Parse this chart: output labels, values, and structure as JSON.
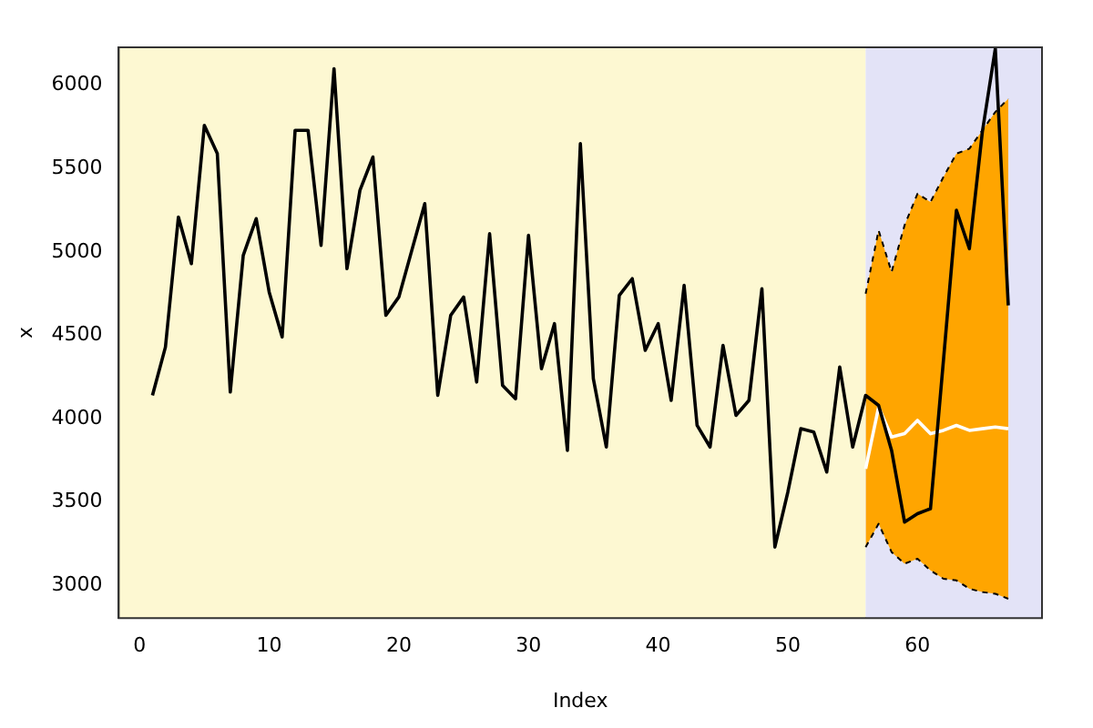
{
  "chart_data": {
    "type": "line",
    "xlabel": "Index",
    "ylabel": "x",
    "xlim": [
      -1.6,
      69.6
    ],
    "xticks": [
      0,
      10,
      20,
      30,
      40,
      50,
      60
    ],
    "ylim": [
      2804,
      6228
    ],
    "yticks": [
      3000,
      3500,
      4000,
      4500,
      5000,
      5500,
      6000
    ],
    "grid": false,
    "legend": false,
    "marker": "none",
    "bands": [
      {
        "axis": "x",
        "from": -1.6,
        "to": 56,
        "color": "#fdf8d2"
      },
      {
        "axis": "x",
        "from": 56,
        "to": 69.6,
        "color": "#e3e3f7"
      }
    ],
    "series": [
      {
        "color": "#000000",
        "x": [
          1,
          2,
          3,
          4,
          5,
          6,
          7,
          8,
          9,
          10,
          11,
          12,
          13,
          14,
          15,
          16,
          17,
          18,
          19,
          20,
          21,
          22,
          23,
          24,
          25,
          26,
          27,
          28,
          29,
          30,
          31,
          32,
          33,
          34,
          35,
          36,
          37,
          38,
          39,
          40,
          41,
          42,
          43,
          44,
          45,
          46,
          47,
          48,
          49,
          50,
          51,
          52,
          53,
          54,
          55,
          56,
          57,
          58,
          59,
          60,
          61,
          62,
          63,
          64,
          65,
          66,
          67
        ],
        "values": [
          4140,
          4430,
          5210,
          4930,
          5760,
          5590,
          4160,
          4980,
          5200,
          4760,
          4490,
          5730,
          5730,
          5040,
          6100,
          4900,
          5370,
          5570,
          4620,
          4730,
          5010,
          5290,
          4140,
          4620,
          4730,
          4220,
          5110,
          4200,
          4120,
          5100,
          4300,
          4570,
          3810,
          5650,
          4240,
          3830,
          4740,
          4840,
          4410,
          4570,
          4110,
          4800,
          3960,
          3830,
          4440,
          4020,
          4110,
          4780,
          3230,
          3560,
          3940,
          3920,
          3680,
          4310,
          3830,
          4140,
          4080,
          3810,
          3380,
          3430,
          3460,
          4350,
          5250,
          5020,
          5720,
          6220,
          4680
        ]
      },
      {
        "color": "#000000",
        "line_style": "dashed",
        "x": [
          56,
          57,
          58,
          59,
          60,
          61,
          62,
          63,
          64,
          65,
          66,
          67
        ],
        "values": [
          4750,
          5130,
          4880,
          5160,
          5350,
          5300,
          5450,
          5590,
          5620,
          5730,
          5840,
          5920
        ]
      },
      {
        "color": "#000000",
        "line_style": "dashed",
        "x": [
          56,
          57,
          58,
          59,
          60,
          61,
          62,
          63,
          64,
          65,
          66,
          67
        ],
        "values": [
          3230,
          3370,
          3200,
          3130,
          3160,
          3090,
          3040,
          3030,
          2980,
          2960,
          2950,
          2920
        ]
      },
      {
        "color": "#ffffff",
        "x": [
          56,
          57,
          58,
          59,
          60,
          61,
          62,
          63,
          64,
          65,
          66,
          67
        ],
        "values": [
          3700,
          4070,
          3890,
          3910,
          3990,
          3910,
          3930,
          3960,
          3930,
          3940,
          3950,
          3940
        ],
        "lower": [
          3230,
          3370,
          3200,
          3130,
          3160,
          3090,
          3040,
          3030,
          2980,
          2960,
          2950,
          2920
        ],
        "upper": [
          4750,
          5130,
          4880,
          5160,
          5350,
          5300,
          5450,
          5590,
          5620,
          5730,
          5840,
          5920
        ]
      }
    ]
  }
}
